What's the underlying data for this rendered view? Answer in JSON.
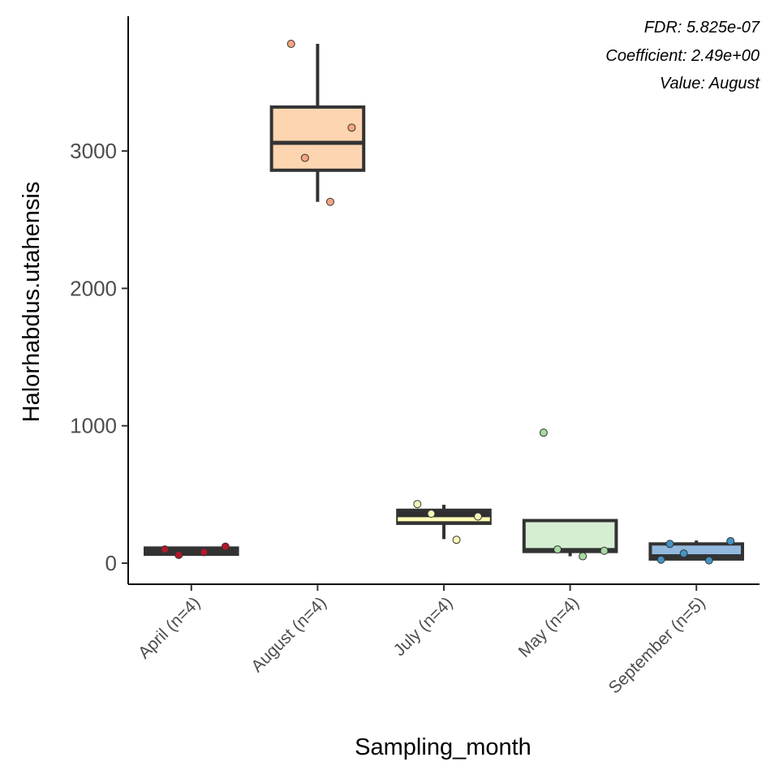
{
  "chart_data": {
    "type": "box",
    "xlabel": "Sampling_month",
    "ylabel": "Halorhabdus.utahensis",
    "ylim": [
      -160,
      4000
    ],
    "yticks": [
      0,
      1000,
      2000,
      3000
    ],
    "grid": false,
    "legend": "none",
    "annotations": [
      "FDR: 5.825e-07",
      "Coefficient: 2.49e+00",
      "Value: August"
    ],
    "categories": [
      "April (n=4)",
      "August (n=4)",
      "July (n=4)",
      "May (n=4)",
      "September (n=5)"
    ],
    "boxes": [
      {
        "q1": 65,
        "median": 85,
        "q3": 110,
        "whisker_low": 55,
        "whisker_high": 115,
        "fill": "#b2182b",
        "median_color": "#333333",
        "points": [
          100,
          120,
          60,
          80
        ]
      },
      {
        "q1": 2860,
        "median": 3060,
        "q3": 3320,
        "whisker_low": 2630,
        "whisker_high": 3780,
        "fill": "#fdd5b0",
        "median_color": "#333333",
        "points": [
          3780,
          3170,
          2950,
          2630
        ]
      },
      {
        "q1": 290,
        "median": 320,
        "q3": 385,
        "whisker_low": 175,
        "whisker_high": 425,
        "fill": "#2f2f2f",
        "median_color": "#ffffb3",
        "points": [
          430,
          340,
          360,
          170
        ]
      },
      {
        "q1": 85,
        "median": 95,
        "q3": 310,
        "whisker_low": 50,
        "whisker_high": 310,
        "fill": "#d5eed2",
        "median_color": "#333333",
        "points": [
          950,
          90,
          100,
          50
        ]
      },
      {
        "q1": 30,
        "median": 50,
        "q3": 140,
        "whisker_low": 20,
        "whisker_high": 165,
        "fill": "#92b9dd",
        "median_color": "#333333",
        "points": [
          140,
          160,
          70,
          20,
          25
        ]
      }
    ],
    "point_colors": [
      "#b2182b",
      "#f4a582",
      "#f6f6b6",
      "#a6dba0",
      "#4393c3"
    ]
  }
}
